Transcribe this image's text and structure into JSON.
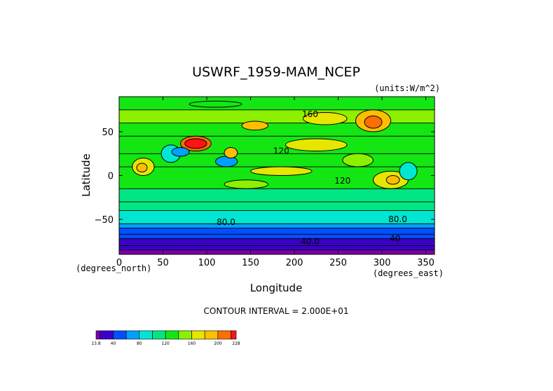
{
  "chart_data": {
    "type": "heatmap",
    "title": "USWRF_1959-MAM_NCEP",
    "units_label": "(units:W/m^2)",
    "xlabel": "Longitude",
    "ylabel": "Latitude",
    "x_unit_label": "(degrees_east)",
    "y_unit_label": "(degrees_north)",
    "xlim": [
      0,
      360
    ],
    "ylim": [
      -90,
      90
    ],
    "x_ticks": [
      0,
      50,
      100,
      150,
      200,
      250,
      300,
      350
    ],
    "x_tick_labels": [
      "0",
      "50",
      "100",
      "150",
      "200",
      "250",
      "300",
      "350"
    ],
    "y_ticks": [
      50,
      0,
      -50
    ],
    "y_tick_labels": [
      "50",
      "0",
      "−50"
    ],
    "contour_interval_text": "CONTOUR INTERVAL = 2.000E+01",
    "contour_labels": [
      {
        "text": "160",
        "lon": 218,
        "lat": 70
      },
      {
        "text": "120",
        "lon": 185,
        "lat": 28
      },
      {
        "text": "120",
        "lon": 255,
        "lat": -6
      },
      {
        "text": "80.0",
        "lon": 122,
        "lat": -53
      },
      {
        "text": "80.0",
        "lon": 318,
        "lat": -50
      },
      {
        "text": "40.0",
        "lon": 218,
        "lat": -75
      },
      {
        "text": "40",
        "lon": 315,
        "lat": -72
      }
    ],
    "colorbar": {
      "levels": [
        13.8,
        20,
        40,
        60,
        80,
        100,
        120,
        140,
        160,
        180,
        200,
        220,
        228
      ],
      "tick_labels": [
        "13.8",
        "40",
        "80",
        "120",
        "160",
        "200",
        "228"
      ],
      "colors": [
        "#7f00a8",
        "#3c00c8",
        "#0050ff",
        "#00a0ff",
        "#00e6d2",
        "#00e682",
        "#14e614",
        "#8cf000",
        "#e6e600",
        "#ffbe00",
        "#ff6e00",
        "#ff1414",
        "#ff8080"
      ]
    },
    "bands": [
      {
        "lat": [
          -90,
          -85
        ],
        "value": 14
      },
      {
        "lat": [
          -85,
          -80
        ],
        "value": 30
      },
      {
        "lat": [
          -80,
          -72
        ],
        "value": 35
      },
      {
        "lat": [
          -72,
          -67
        ],
        "value": 50
      },
      {
        "lat": [
          -67,
          -60
        ],
        "value": 55
      },
      {
        "lat": [
          -60,
          -55
        ],
        "value": 70
      },
      {
        "lat": [
          -55,
          -40
        ],
        "value": 90
      },
      {
        "lat": [
          -40,
          -30
        ],
        "value": 105
      },
      {
        "lat": [
          -30,
          -15
        ],
        "value": 118
      },
      {
        "lat": [
          -15,
          10
        ],
        "value": 120
      },
      {
        "lat": [
          10,
          25
        ],
        "value": 125
      },
      {
        "lat": [
          25,
          45
        ],
        "value": 128
      },
      {
        "lat": [
          45,
          60
        ],
        "value": 130
      },
      {
        "lat": [
          60,
          75
        ],
        "value": 140
      },
      {
        "lat": [
          75,
          90
        ],
        "value": 125
      }
    ],
    "features": [
      {
        "lon": [
          70,
          105
        ],
        "lat": [
          28,
          45
        ],
        "value": 215
      },
      {
        "lon": [
          75,
          100
        ],
        "lat": [
          31,
          42
        ],
        "value": 225
      },
      {
        "lon": [
          270,
          310
        ],
        "lat": [
          50,
          75
        ],
        "value": 195
      },
      {
        "lon": [
          280,
          300
        ],
        "lat": [
          54,
          68
        ],
        "value": 210
      },
      {
        "lon": [
          140,
          170
        ],
        "lat": [
          52,
          62
        ],
        "value": 185
      },
      {
        "lon": [
          110,
          135
        ],
        "lat": [
          10,
          22
        ],
        "value": 60
      },
      {
        "lon": [
          48,
          70
        ],
        "lat": [
          15,
          35
        ],
        "value": 95
      },
      {
        "lon": [
          60,
          80
        ],
        "lat": [
          22,
          32
        ],
        "value": 70
      },
      {
        "lon": [
          15,
          40
        ],
        "lat": [
          0,
          20
        ],
        "value": 170
      },
      {
        "lon": [
          20,
          32
        ],
        "lat": [
          4,
          14
        ],
        "value": 190
      },
      {
        "lon": [
          290,
          330
        ],
        "lat": [
          -15,
          5
        ],
        "value": 170
      },
      {
        "lon": [
          305,
          320
        ],
        "lat": [
          -10,
          0
        ],
        "value": 185
      },
      {
        "lon": [
          120,
          135
        ],
        "lat": [
          20,
          32
        ],
        "value": 185
      },
      {
        "lon": [
          190,
          260
        ],
        "lat": [
          28,
          42
        ],
        "value": 165
      },
      {
        "lon": [
          150,
          220
        ],
        "lat": [
          0,
          10
        ],
        "value": 165
      },
      {
        "lon": [
          210,
          260
        ],
        "lat": [
          58,
          72
        ],
        "value": 165
      },
      {
        "lon": [
          255,
          290
        ],
        "lat": [
          10,
          25
        ],
        "value": 145
      },
      {
        "lon": [
          320,
          340
        ],
        "lat": [
          -5,
          15
        ],
        "value": 85
      },
      {
        "lon": [
          120,
          170
        ],
        "lat": [
          -15,
          -5
        ],
        "value": 145
      },
      {
        "lon": [
          80,
          140
        ],
        "lat": [
          78,
          85
        ],
        "value": 125
      }
    ]
  }
}
